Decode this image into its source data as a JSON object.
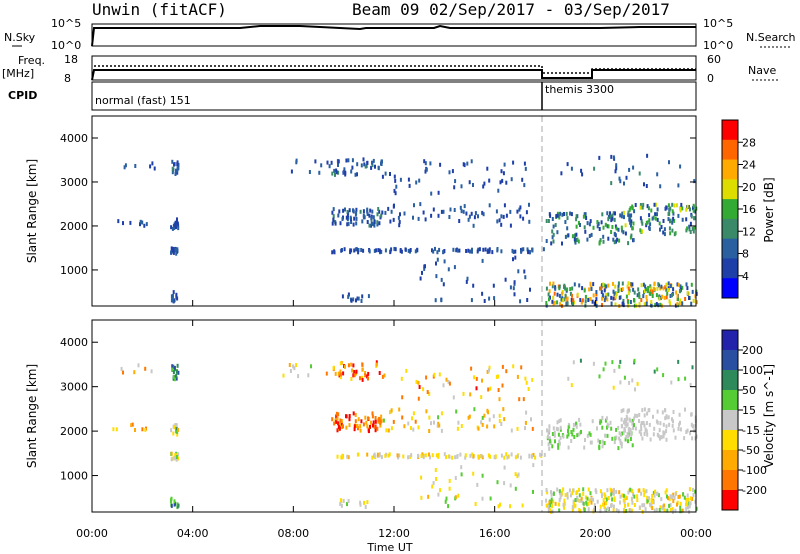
{
  "header": {
    "station": "Unwin (fitACF)",
    "beam_info": "Beam 09  02/Sep/2017 - 03/Sep/2017"
  },
  "top_panels": {
    "nsky_label": "N.Sky",
    "nsearch_label": "N.Search",
    "nsky_ticks": [
      "10^5",
      "10^0"
    ],
    "nsearch_ticks": [
      "10^5",
      "10^0"
    ],
    "freq_label_1": "Freq.",
    "freq_label_2": "[MHz]",
    "freq_ticks": [
      "18",
      "8"
    ],
    "nave_label": "Nave",
    "nave_ticks": [
      "60",
      "0"
    ],
    "cpid_label": "CPID",
    "cpid_segments": [
      {
        "name": "normal (fast) 151",
        "start_hour": 0,
        "end_hour": 18
      },
      {
        "name": "themis 3300",
        "start_hour": 18,
        "end_hour": 24
      }
    ]
  },
  "time_axis": {
    "label": "Time UT",
    "ticks": [
      "00:00",
      "04:00",
      "08:00",
      "12:00",
      "16:00",
      "20:00",
      "00:00"
    ],
    "range_hours": [
      0,
      24
    ]
  },
  "colors": {
    "power_scale": [
      "#0000ff",
      "#1f3fa8",
      "#2a5fa0",
      "#3a8a6a",
      "#33aa33",
      "#dddd00",
      "#ffaa00",
      "#ff6600",
      "#ff0000"
    ],
    "velocity_scale": [
      "#2222aa",
      "#2a4fa0",
      "#2e8a5a",
      "#55cc33",
      "#c8c8c8",
      "#ffdd00",
      "#ffaa00",
      "#ff7700",
      "#ff0000"
    ]
  },
  "chart_data": [
    {
      "type": "heatmap",
      "title": "Power",
      "xlabel": "Time UT",
      "ylabel": "Slant Range [km]",
      "xlim": [
        0,
        24
      ],
      "ylim": [
        180,
        4500
      ],
      "yticks": [
        1000,
        2000,
        3000,
        4000
      ],
      "colorbar": {
        "label": "Power [dB]",
        "ticks": [
          4,
          8,
          12,
          16,
          20,
          24,
          28
        ],
        "range": [
          0,
          32
        ]
      },
      "mode_change_hour": 18,
      "clusters": [
        {
          "t": [
            3.1,
            3.4
          ],
          "r": [
            3150,
            3500
          ],
          "n": 18,
          "v": [
            4,
            12
          ]
        },
        {
          "t": [
            3.1,
            3.4
          ],
          "r": [
            1900,
            2150
          ],
          "n": 14,
          "v": [
            4,
            10
          ]
        },
        {
          "t": [
            3.1,
            3.4
          ],
          "r": [
            1350,
            1500
          ],
          "n": 16,
          "v": [
            4,
            10
          ]
        },
        {
          "t": [
            3.1,
            3.4
          ],
          "r": [
            280,
            500
          ],
          "n": 12,
          "v": [
            4,
            10
          ]
        },
        {
          "t": [
            0.5,
            2.5
          ],
          "r": [
            2000,
            2150
          ],
          "n": 8,
          "v": [
            4,
            10
          ]
        },
        {
          "t": [
            0.5,
            2.5
          ],
          "r": [
            3300,
            3500
          ],
          "n": 6,
          "v": [
            4,
            10
          ]
        },
        {
          "t": [
            7.5,
            9.5
          ],
          "r": [
            3200,
            3500
          ],
          "n": 10,
          "v": [
            4,
            10
          ]
        },
        {
          "t": [
            9.5,
            11.5
          ],
          "r": [
            3150,
            3550
          ],
          "n": 40,
          "v": [
            4,
            12
          ]
        },
        {
          "t": [
            9.5,
            11.5
          ],
          "r": [
            2000,
            2400
          ],
          "n": 70,
          "v": [
            4,
            12
          ]
        },
        {
          "t": [
            9.5,
            18
          ],
          "r": [
            1400,
            1480
          ],
          "n": 90,
          "v": [
            4,
            10
          ]
        },
        {
          "t": [
            11.5,
            17.5
          ],
          "r": [
            2000,
            2500
          ],
          "n": 60,
          "v": [
            4,
            10
          ]
        },
        {
          "t": [
            11.5,
            17.5
          ],
          "r": [
            2700,
            3500
          ],
          "n": 50,
          "v": [
            4,
            10
          ]
        },
        {
          "t": [
            13,
            17.5
          ],
          "r": [
            280,
            1300
          ],
          "n": 40,
          "v": [
            4,
            10
          ]
        },
        {
          "t": [
            9.8,
            11
          ],
          "r": [
            280,
            450
          ],
          "n": 12,
          "v": [
            4,
            10
          ]
        },
        {
          "t": [
            18,
            24
          ],
          "r": [
            180,
            700
          ],
          "n": 260,
          "v": [
            4,
            28
          ]
        },
        {
          "t": [
            18,
            21.5
          ],
          "r": [
            1600,
            2300
          ],
          "n": 120,
          "v": [
            4,
            16
          ]
        },
        {
          "t": [
            21,
            24
          ],
          "r": [
            1800,
            2500
          ],
          "n": 110,
          "v": [
            4,
            20
          ]
        },
        {
          "t": [
            18.5,
            24
          ],
          "r": [
            2900,
            3600
          ],
          "n": 30,
          "v": [
            4,
            12
          ]
        }
      ]
    },
    {
      "type": "heatmap",
      "title": "Velocity",
      "xlabel": "Time UT",
      "ylabel": "Slant Range [km]",
      "xlim": [
        0,
        24
      ],
      "ylim": [
        180,
        4500
      ],
      "yticks": [
        1000,
        2000,
        3000,
        4000
      ],
      "colorbar": {
        "label": "Velocity [m s^-1]",
        "ticks": [
          200,
          100,
          50,
          15,
          -15,
          -50,
          -100,
          -200
        ],
        "range": [
          -250,
          250
        ]
      },
      "mode_change_hour": 18,
      "clusters": [
        {
          "t": [
            3.1,
            3.4
          ],
          "r": [
            3150,
            3500
          ],
          "n": 18,
          "v": [
            50,
            200
          ]
        },
        {
          "t": [
            3.1,
            3.4
          ],
          "r": [
            1900,
            2150
          ],
          "n": 14,
          "v": [
            -100,
            100
          ]
        },
        {
          "t": [
            3.1,
            3.4
          ],
          "r": [
            1350,
            1500
          ],
          "n": 16,
          "v": [
            -100,
            50
          ]
        },
        {
          "t": [
            3.1,
            3.4
          ],
          "r": [
            280,
            500
          ],
          "n": 12,
          "v": [
            50,
            200
          ]
        },
        {
          "t": [
            0.5,
            2.5
          ],
          "r": [
            2000,
            2150
          ],
          "n": 8,
          "v": [
            -200,
            -50
          ]
        },
        {
          "t": [
            0.5,
            2.5
          ],
          "r": [
            3300,
            3500
          ],
          "n": 6,
          "v": [
            -200,
            50
          ]
        },
        {
          "t": [
            7.5,
            9.5
          ],
          "r": [
            3200,
            3500
          ],
          "n": 10,
          "v": [
            -200,
            50
          ]
        },
        {
          "t": [
            9.5,
            11.5
          ],
          "r": [
            3150,
            3550
          ],
          "n": 40,
          "v": [
            -250,
            -50
          ]
        },
        {
          "t": [
            9.5,
            11.5
          ],
          "r": [
            2000,
            2400
          ],
          "n": 70,
          "v": [
            -250,
            -100
          ]
        },
        {
          "t": [
            9.5,
            18
          ],
          "r": [
            1400,
            1480
          ],
          "n": 90,
          "v": [
            -100,
            15
          ]
        },
        {
          "t": [
            11.5,
            17.5
          ],
          "r": [
            2000,
            2500
          ],
          "n": 60,
          "v": [
            -150,
            50
          ]
        },
        {
          "t": [
            11.5,
            17.5
          ],
          "r": [
            2700,
            3500
          ],
          "n": 50,
          "v": [
            -200,
            -15
          ]
        },
        {
          "t": [
            13,
            17.5
          ],
          "r": [
            280,
            1300
          ],
          "n": 40,
          "v": [
            -100,
            50
          ]
        },
        {
          "t": [
            9.8,
            11
          ],
          "r": [
            280,
            450
          ],
          "n": 12,
          "v": [
            -50,
            50
          ]
        },
        {
          "t": [
            18,
            24
          ],
          "r": [
            180,
            700
          ],
          "n": 260,
          "v": [
            -100,
            50
          ]
        },
        {
          "t": [
            18,
            21.5
          ],
          "r": [
            1600,
            2300
          ],
          "n": 120,
          "v": [
            -15,
            50
          ]
        },
        {
          "t": [
            21,
            24
          ],
          "r": [
            1800,
            2500
          ],
          "n": 110,
          "v": [
            -15,
            15
          ]
        },
        {
          "t": [
            18.5,
            24
          ],
          "r": [
            2900,
            3600
          ],
          "n": 30,
          "v": [
            -50,
            100
          ]
        }
      ]
    }
  ]
}
